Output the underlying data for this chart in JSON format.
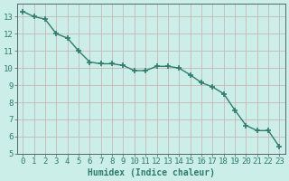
{
  "x": [
    0,
    1,
    2,
    3,
    4,
    5,
    6,
    7,
    8,
    9,
    10,
    11,
    12,
    13,
    14,
    15,
    16,
    17,
    18,
    19,
    20,
    21,
    22,
    23
  ],
  "y": [
    13.3,
    13.0,
    12.85,
    12.0,
    11.75,
    11.0,
    10.35,
    10.25,
    10.25,
    10.15,
    9.85,
    9.85,
    10.1,
    10.1,
    10.0,
    9.6,
    9.15,
    8.9,
    8.5,
    7.55,
    6.65,
    6.35,
    6.35,
    5.4
  ],
  "line_color": "#2e7d6e",
  "marker": "+",
  "marker_size": 4,
  "marker_lw": 1.2,
  "line_width": 1.0,
  "xlim": [
    -0.5,
    23.5
  ],
  "ylim": [
    5,
    13.75
  ],
  "yticks": [
    5,
    6,
    7,
    8,
    9,
    10,
    11,
    12,
    13
  ],
  "xticks": [
    0,
    1,
    2,
    3,
    4,
    5,
    6,
    7,
    8,
    9,
    10,
    11,
    12,
    13,
    14,
    15,
    16,
    17,
    18,
    19,
    20,
    21,
    22,
    23
  ],
  "xlabel": "Humidex (Indice chaleur)",
  "bg_color": "#cceee8",
  "grid_color": "#c8b8b8",
  "axis_color": "#556666",
  "font_color": "#2e7d6e",
  "xlabel_fontsize": 7,
  "tick_fontsize": 6.5,
  "fig_width": 3.2,
  "fig_height": 2.0,
  "dpi": 100
}
